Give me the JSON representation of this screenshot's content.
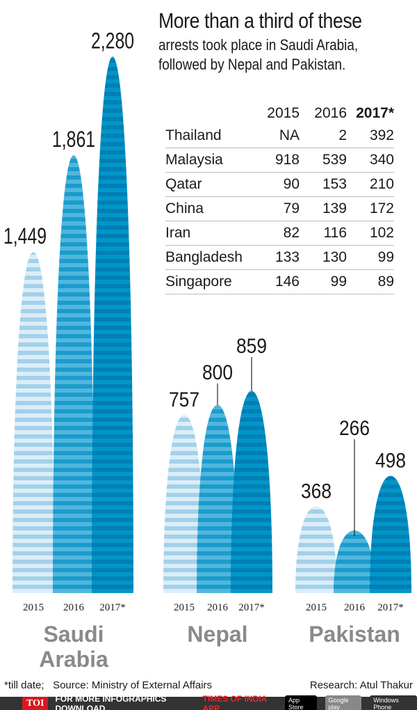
{
  "chart_data": {
    "type": "bar",
    "title": "More than a third of these",
    "subtitle": [
      "arrests took place in Saudi Arabia,",
      "followed by Nepal and Pakistan."
    ],
    "groups": [
      "Saudi Arabia",
      "Nepal",
      "Pakistan"
    ],
    "group_lines": [
      [
        "Saudi",
        "Arabia"
      ],
      [
        "Nepal"
      ],
      [
        "Pakistan"
      ]
    ],
    "categories": [
      "2015",
      "2016",
      "2017*"
    ],
    "values": [
      [
        1449,
        1861,
        2280
      ],
      [
        757,
        800,
        859
      ],
      [
        368,
        266,
        498
      ]
    ],
    "labels": [
      [
        "1,449",
        "1,861",
        "2,280"
      ],
      [
        "757",
        "800",
        "859"
      ],
      [
        "368",
        "266",
        "498"
      ]
    ],
    "colors": [
      [
        "#a2d1ea",
        "#dcedf7"
      ],
      [
        "#1a9ccc",
        "#52b6dd"
      ],
      [
        "#007fb4",
        "#0096c9"
      ]
    ],
    "table": {
      "headers": [
        "2015",
        "2016",
        "2017*"
      ],
      "rows": [
        [
          "Thailand",
          "NA",
          "2",
          "392"
        ],
        [
          "Malaysia",
          "918",
          "539",
          "340"
        ],
        [
          "Qatar",
          "90",
          "153",
          "210"
        ],
        [
          "China",
          "79",
          "139",
          "172"
        ],
        [
          "Iran",
          "82",
          "116",
          "102"
        ],
        [
          "Bangladesh",
          "133",
          "130",
          "99"
        ],
        [
          "Singapore",
          "146",
          "99",
          "89"
        ]
      ]
    }
  },
  "footer": {
    "note": "*till date;",
    "source": "Source: Ministry of External Affairs",
    "research": "Research: Atul Thakur"
  },
  "banner": {
    "logo": "TOI",
    "text": "FOR MORE  INFOGRAPHICS DOWNLOAD",
    "app": "TIMES OF INDIA  APP",
    "badges": [
      "App Store",
      "Google play",
      "Windows Phone"
    ]
  }
}
